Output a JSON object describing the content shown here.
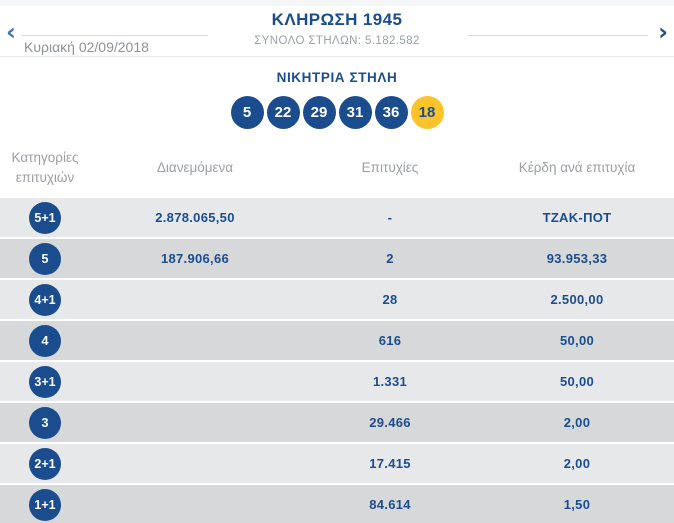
{
  "colors": {
    "navy": "#1b4d8e",
    "yellow": "#fcc32a",
    "row_light": "#e7e8ea",
    "row_dark": "#d6d8da"
  },
  "header": {
    "prev_icon": "‹",
    "next_icon": "›",
    "date": "Κυριακή 02/09/2018",
    "title": "ΚΛΗΡΩΣΗ 1945",
    "total_label": "ΣΥΝΟΛΟ ΣΤΗΛΩΝ: 5.182.582"
  },
  "winning": {
    "label": "ΝΙΚΗΤΡΙΑ ΣΤΗΛΗ",
    "numbers": [
      {
        "value": "5",
        "type": "main"
      },
      {
        "value": "22",
        "type": "main"
      },
      {
        "value": "29",
        "type": "main"
      },
      {
        "value": "31",
        "type": "main"
      },
      {
        "value": "36",
        "type": "main"
      },
      {
        "value": "18",
        "type": "bonus"
      }
    ]
  },
  "table": {
    "headers": [
      "Κατηγορίες επιτυχιών",
      "Διανεμόμενα",
      "Επιτυχίες",
      "Κέρδη ανά επιτυχία"
    ],
    "rows": [
      {
        "category": "5+1",
        "distributed": "2.878.065,50",
        "successes": "-",
        "winnings": "ΤΖΑΚ-ΠΟΤ"
      },
      {
        "category": "5",
        "distributed": "187.906,66",
        "successes": "2",
        "winnings": "93.953,33"
      },
      {
        "category": "4+1",
        "distributed": "",
        "successes": "28",
        "winnings": "2.500,00"
      },
      {
        "category": "4",
        "distributed": "",
        "successes": "616",
        "winnings": "50,00"
      },
      {
        "category": "3+1",
        "distributed": "",
        "successes": "1.331",
        "winnings": "50,00"
      },
      {
        "category": "3",
        "distributed": "",
        "successes": "29.466",
        "winnings": "2,00"
      },
      {
        "category": "2+1",
        "distributed": "",
        "successes": "17.415",
        "winnings": "2,00"
      },
      {
        "category": "1+1",
        "distributed": "",
        "successes": "84.614",
        "winnings": "1,50"
      }
    ]
  }
}
